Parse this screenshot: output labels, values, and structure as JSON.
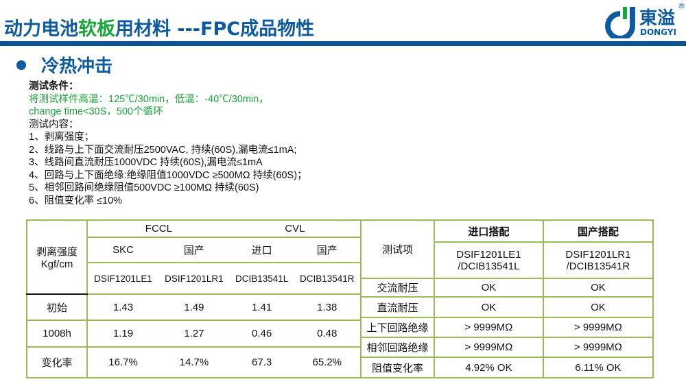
{
  "header": {
    "title_part1": "动力电池",
    "title_green": "软板",
    "title_part2": "用材料 ---FPC成品物性"
  },
  "logo": {
    "cn": "東溢",
    "en": "DONGYI",
    "reg": "®"
  },
  "section": {
    "title": "冷热冲击"
  },
  "conditions": {
    "label": "测试条件：",
    "line1": "将测试样件高温：125℃/30min，低温：-40℃/30min，",
    "line2": "change time<30S，500个循环",
    "content_label": "测试内容：",
    "items": [
      "1、剥离强度；",
      "2、线路与上下面交流耐压2500VAC, 持续(60S),漏电流≤1mA;",
      "3、线路间直流耐压1000VDC 持续(60S),漏电流≤1mA",
      "4、回路与上下面绝缘:绝缘阻值1000VDC   ≥500MΩ 持续(60S)；",
      "5、相邻回路间绝缘阻值500VDC ≥100MΩ 持续(60S)",
      "6、阻值变化率 ≤10%"
    ]
  },
  "peel_table": {
    "corner": [
      "剥离强度",
      "Kgf/cm"
    ],
    "groups": [
      "FCCL",
      "CVL"
    ],
    "sources": [
      "SKC",
      "国产",
      "进口",
      "国产"
    ],
    "models": [
      "DSIF1201LE1",
      "DSIF1201LR1",
      "DCIB13541L",
      "DCIB13541R"
    ],
    "rows": [
      {
        "label": "初始",
        "values": [
          "1.43",
          "1.49",
          "1.41",
          "1.38"
        ]
      },
      {
        "label": "1008h",
        "values": [
          "1.19",
          "1.27",
          "0.46",
          "0.48"
        ]
      },
      {
        "label": "变化率",
        "values": [
          "16.7%",
          "14.7%",
          "67.3",
          "65.2%"
        ]
      }
    ]
  },
  "elec_table": {
    "item_header": "测试项",
    "columns": [
      {
        "title": "进口搭配",
        "model1": "DSIF1201LE1",
        "model2": "/DCIB13541L"
      },
      {
        "title": "国产搭配",
        "model1": "DSIF1201LR1",
        "model2": "/DCIB13541R"
      }
    ],
    "rows": [
      {
        "label": "交流耐压",
        "values": [
          "OK",
          "OK"
        ]
      },
      {
        "label": "直流耐压",
        "values": [
          "OK",
          "OK"
        ]
      },
      {
        "label": "上下回路绝缘",
        "values": [
          "> 9999MΩ",
          "> 9999MΩ"
        ]
      },
      {
        "label": "相邻回路绝缘",
        "values": [
          "> 9999MΩ",
          "> 9999MΩ"
        ]
      },
      {
        "label": "阻值变化率",
        "values": [
          "4.92% OK",
          "6.11% OK"
        ]
      }
    ]
  },
  "colors": {
    "brand_blue": "#0d5aa0",
    "green": "#1aa43a",
    "table_border": "#9bbb59"
  }
}
